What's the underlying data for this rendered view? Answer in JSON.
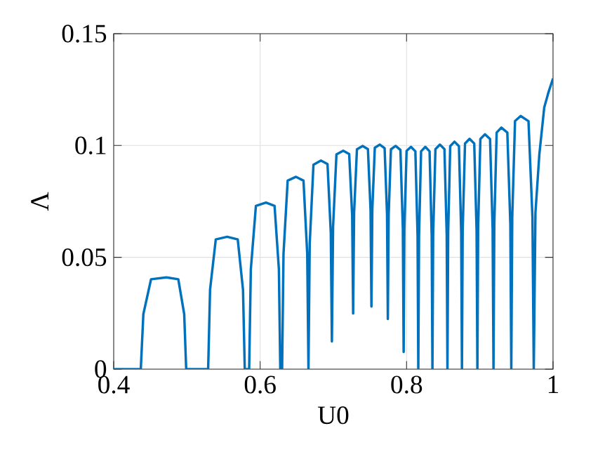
{
  "chart_data": {
    "type": "line",
    "xlabel": "U0",
    "ylabel": "Λ",
    "color": "#0072bd",
    "grid": true,
    "marker": "none",
    "xlim": [
      0.4,
      1
    ],
    "ylim": [
      0,
      0.15
    ],
    "xticks": [
      0.4,
      0.6,
      0.8,
      1
    ],
    "yticks": [
      0,
      0.05,
      0.1,
      0.15
    ],
    "x": [
      0.4,
      0.437,
      0.4405,
      0.451,
      0.472,
      0.4882,
      0.4963,
      0.499,
      0.529,
      0.5316,
      0.5394,
      0.555,
      0.5694,
      0.5766,
      0.579,
      0.585,
      0.5873,
      0.5942,
      0.608,
      0.6197,
      0.6256,
      0.6275,
      0.63,
      0.6319,
      0.6376,
      0.649,
      0.6592,
      0.6643,
      0.666,
      0.6677,
      0.6728,
      0.683,
      0.692,
      0.6965,
      0.698,
      0.6996,
      0.7042,
      0.7135,
      0.7216,
      0.7257,
      0.727,
      0.7283,
      0.7322,
      0.74,
      0.7472,
      0.7508,
      0.752,
      0.7532,
      0.7566,
      0.7635,
      0.77,
      0.7733,
      0.7744,
      0.7755,
      0.7786,
      0.785,
      0.7916,
      0.7949,
      0.796,
      0.797,
      0.8,
      0.806,
      0.812,
      0.815,
      0.816,
      0.817,
      0.8198,
      0.8256,
      0.8314,
      0.8343,
      0.8353,
      0.8363,
      0.8394,
      0.8455,
      0.8517,
      0.8548,
      0.8558,
      0.8568,
      0.8596,
      0.8654,
      0.8715,
      0.8746,
      0.8756,
      0.8766,
      0.8798,
      0.886,
      0.8924,
      0.8956,
      0.8967,
      0.8977,
      0.9008,
      0.907,
      0.914,
      0.9175,
      0.9187,
      0.9198,
      0.923,
      0.9295,
      0.9376,
      0.9417,
      0.943,
      0.9443,
      0.9481,
      0.9558,
      0.9665,
      0.9719,
      0.9737,
      0.976,
      0.9813,
      0.988,
      0.994,
      1.0
    ],
    "values": [
      0,
      0,
      0.0246,
      0.0402,
      0.041,
      0.0402,
      0.0246,
      0,
      0,
      0.0355,
      0.058,
      0.0592,
      0.058,
      0.0355,
      0,
      0,
      0.0447,
      0.073,
      0.0745,
      0.073,
      0.0447,
      0,
      0,
      0.0516,
      0.0843,
      0.086,
      0.0843,
      0.0516,
      0,
      0.056,
      0.0914,
      0.0933,
      0.0917,
      0.0609,
      0.0124,
      0.0636,
      0.096,
      0.0977,
      0.0962,
      0.0686,
      0.0249,
      0.0698,
      0.0983,
      0.0998,
      0.0984,
      0.0711,
      0.028,
      0.0714,
      0.099,
      0.1004,
      0.0988,
      0.0692,
      0.0224,
      0.0688,
      0.0983,
      0.0998,
      0.098,
      0.063,
      0.0077,
      0.0627,
      0.0976,
      0.0994,
      0.0974,
      0.0596,
      0,
      0.0596,
      0.0974,
      0.0994,
      0.0974,
      0.0596,
      0,
      0.0602,
      0.0984,
      0.1004,
      0.0984,
      0.0602,
      0,
      0.061,
      0.0997,
      0.1017,
      0.0997,
      0.061,
      0,
      0.0618,
      0.1009,
      0.103,
      0.1009,
      0.0618,
      0,
      0.063,
      0.1029,
      0.105,
      0.1029,
      0.063,
      0,
      0.0648,
      0.1058,
      0.108,
      0.1058,
      0.0648,
      0,
      0.0679,
      0.1109,
      0.1132,
      0.1109,
      0.0679,
      0,
      0.07,
      0.096,
      0.117,
      0.124,
      0.13
    ]
  }
}
